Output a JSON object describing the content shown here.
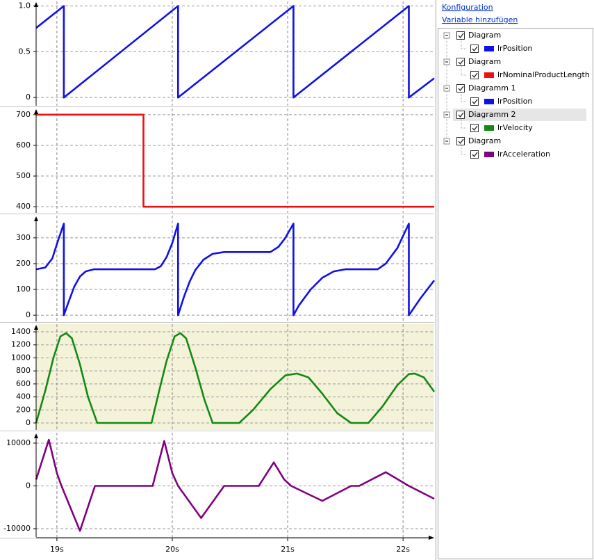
{
  "chart_data": [
    {
      "type": "line",
      "title": "Diagram",
      "x": [
        18.82,
        19.06,
        19.06,
        20.05,
        20.05,
        21.05,
        21.05,
        22.05,
        22.05,
        22.27
      ],
      "series": [
        {
          "name": "lrPosition",
          "color": "#1010e8",
          "values": [
            0.76,
            1,
            0,
            1,
            0,
            1,
            0,
            1,
            0,
            0.21
          ]
        }
      ],
      "xlim": [
        18.82,
        22.27
      ],
      "ylim": [
        -0.09,
        1.05
      ],
      "yticks": [
        0,
        0.5,
        {
          "value": 1,
          "label": "1.0"
        }
      ],
      "grid": true
    },
    {
      "type": "line",
      "title": "Diagram",
      "x": [
        18.82,
        19.75,
        19.75,
        22.27
      ],
      "series": [
        {
          "name": "lrNominalProductLength",
          "color": "#ee1111",
          "values": [
            700,
            700,
            400,
            400
          ]
        }
      ],
      "xlim": [
        18.82,
        22.27
      ],
      "ylim": [
        380,
        720
      ],
      "yticks": [
        400,
        500,
        600,
        700
      ],
      "grid": true
    },
    {
      "type": "line",
      "title": "Diagramm 1",
      "x": [
        18.82,
        18.9,
        18.96,
        19.01,
        19.06,
        19.06,
        19.1,
        19.15,
        19.2,
        19.25,
        19.32,
        19.85,
        19.9,
        19.95,
        20.0,
        20.05,
        20.05,
        20.1,
        20.15,
        20.2,
        20.27,
        20.35,
        20.45,
        20.85,
        20.92,
        20.98,
        21.05,
        21.05,
        21.1,
        21.2,
        21.3,
        21.4,
        21.5,
        21.78,
        21.85,
        21.95,
        22.05,
        22.05,
        22.15,
        22.27
      ],
      "series": [
        {
          "name": "lrPosition",
          "color": "#1010e8",
          "values": [
            178,
            185,
            220,
            290,
            355,
            0,
            50,
            110,
            150,
            170,
            178,
            178,
            190,
            225,
            280,
            355,
            0,
            70,
            130,
            175,
            215,
            238,
            245,
            245,
            265,
            300,
            355,
            0,
            40,
            100,
            145,
            170,
            178,
            178,
            200,
            260,
            355,
            0,
            65,
            135
          ]
        }
      ],
      "xlim": [
        18.82,
        22.27
      ],
      "ylim": [
        -24,
        386
      ],
      "yticks": [
        0,
        100,
        200,
        300
      ],
      "grid": true
    },
    {
      "type": "line",
      "title": "Diagramm 2",
      "background": "#f5f2da",
      "x": [
        18.82,
        18.9,
        18.97,
        19.03,
        19.08,
        19.13,
        19.2,
        19.27,
        19.35,
        19.82,
        19.88,
        19.95,
        20.02,
        20.07,
        20.12,
        20.2,
        20.28,
        20.35,
        20.58,
        20.7,
        20.85,
        20.98,
        21.08,
        21.18,
        21.3,
        21.43,
        21.55,
        21.7,
        21.82,
        21.95,
        22.05,
        22.1,
        22.18,
        22.27
      ],
      "series": [
        {
          "name": "lrVelocity",
          "color": "#138a13",
          "values": [
            0,
            500,
            1000,
            1330,
            1380,
            1300,
            900,
            400,
            0,
            0,
            450,
            950,
            1330,
            1380,
            1300,
            850,
            350,
            0,
            0,
            200,
            520,
            730,
            760,
            700,
            450,
            150,
            0,
            0,
            250,
            580,
            750,
            760,
            700,
            480
          ]
        }
      ],
      "xlim": [
        18.82,
        22.27
      ],
      "ylim": [
        -107,
        1518
      ],
      "yticks": [
        0,
        200,
        400,
        600,
        800,
        1000,
        1200,
        1400
      ],
      "grid": true
    },
    {
      "type": "line",
      "title": "Diagram",
      "x": [
        18.82,
        18.93,
        19.0,
        19.04,
        19.2,
        19.33,
        19.83,
        19.93,
        20.0,
        20.05,
        20.25,
        20.45,
        20.75,
        20.88,
        20.97,
        21.03,
        21.3,
        21.55,
        21.62,
        21.85,
        22.05,
        22.27
      ],
      "series": [
        {
          "name": "lrAcceleration",
          "color": "#800080",
          "values": [
            1500,
            10800,
            3000,
            0,
            -10500,
            0,
            0,
            10500,
            3000,
            0,
            -7500,
            0,
            0,
            5500,
            1500,
            0,
            -3500,
            0,
            0,
            3200,
            0,
            -3000
          ]
        }
      ],
      "xlim": [
        18.82,
        22.27
      ],
      "ylim": [
        -11950,
        12440
      ],
      "yticks": [
        -10000,
        0,
        10000
      ],
      "grid": true,
      "xticks": [
        {
          "value": 19,
          "label": "19s"
        },
        {
          "value": 20,
          "label": "20s"
        },
        {
          "value": 21,
          "label": "21s"
        },
        {
          "value": 22,
          "label": "22s"
        }
      ]
    }
  ],
  "sidebar": {
    "links": [
      "Konfiguration",
      "Variable hinzufügen"
    ]
  }
}
